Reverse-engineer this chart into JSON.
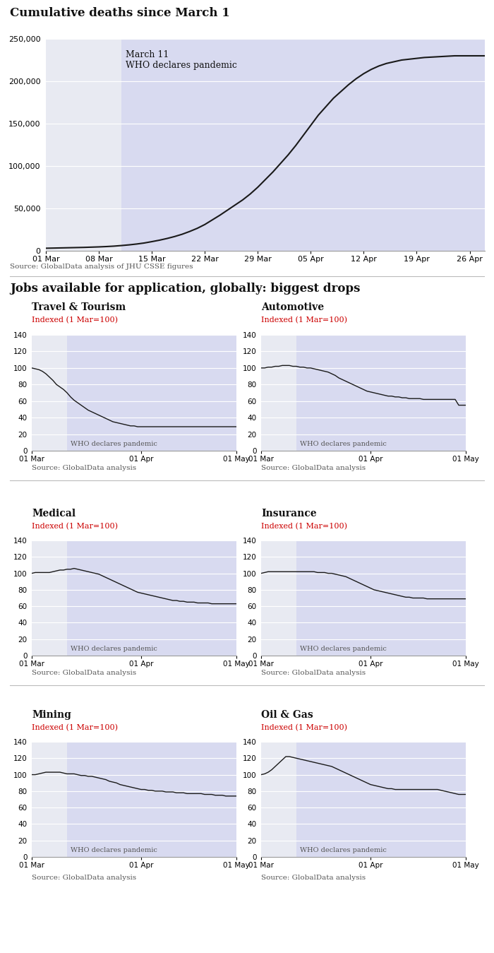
{
  "title_top": "Cumulative deaths since March 1",
  "source_top": "Source: GlobalData analysis of JHU CSSE figures",
  "title_jobs": "Jobs available for application, globally: biggest drops",
  "source_jobs": "Source: GlobalData analysis",
  "bg_color": "#ffffff",
  "plot_bg": "#e8eaf2",
  "pandemic_bg": "#d8daf0",
  "line_color": "#1a1a1a",
  "red_color": "#cc0000",
  "pandemic_label": "WHO declares pandemic",
  "march11_label": "March 11\nWHO declares pandemic",
  "indexed_label": "Indexed (1 Mar=100)",
  "deaths_x": [
    0,
    1,
    2,
    3,
    4,
    5,
    6,
    7,
    8,
    9,
    10,
    11,
    12,
    13,
    14,
    15,
    16,
    17,
    18,
    19,
    20,
    21,
    22,
    23,
    24,
    25,
    26,
    27,
    28,
    29,
    30,
    31,
    32,
    33,
    34,
    35,
    36,
    37,
    38,
    39,
    40,
    41,
    42,
    43,
    44,
    45,
    46,
    47,
    48,
    49,
    50,
    51,
    52,
    53,
    54,
    55,
    56,
    57,
    58
  ],
  "deaths_y": [
    3000,
    3200,
    3400,
    3600,
    3800,
    4000,
    4300,
    4600,
    5000,
    5500,
    6200,
    7000,
    8000,
    9200,
    10800,
    12500,
    14500,
    16800,
    19500,
    22800,
    26500,
    31000,
    36500,
    42000,
    48000,
    54000,
    60000,
    67000,
    75000,
    84000,
    93000,
    103000,
    113000,
    124000,
    136000,
    148000,
    160000,
    170000,
    180000,
    188000,
    196000,
    203000,
    209000,
    214000,
    218000,
    221000,
    223000,
    225000,
    226000,
    227000,
    228000,
    228500,
    229000,
    229500,
    230000,
    230000,
    230000,
    230000,
    230000
  ],
  "pandemic_day": 10,
  "xtick_days": [
    0,
    7,
    14,
    21,
    28,
    35,
    42,
    49,
    56
  ],
  "xtick_labels": [
    "01 Mar",
    "08 Mar",
    "15 Mar",
    "22 Mar",
    "29 Mar",
    "05 Apr",
    "12 Apr",
    "19 Apr",
    "26 Apr"
  ],
  "ylim_deaths": [
    0,
    250000
  ],
  "yticks_deaths": [
    0,
    50000,
    100000,
    150000,
    200000,
    250000
  ],
  "sectors": [
    "Travel & Tourism",
    "Automotive",
    "Medical",
    "Insurance",
    "Mining",
    "Oil & Gas"
  ],
  "sector_data": {
    "Travel & Tourism": [
      100,
      99,
      98,
      96,
      93,
      89,
      85,
      80,
      77,
      74,
      70,
      65,
      61,
      58,
      55,
      52,
      49,
      47,
      45,
      43,
      41,
      39,
      37,
      35,
      34,
      33,
      32,
      31,
      30,
      30,
      29,
      29,
      29,
      29,
      29,
      29,
      29,
      29,
      29,
      29,
      29,
      29,
      29,
      29,
      29,
      29,
      29,
      29,
      29,
      29,
      29,
      29,
      29,
      29,
      29,
      29,
      29,
      29,
      29
    ],
    "Automotive": [
      100,
      100,
      101,
      101,
      102,
      102,
      103,
      103,
      103,
      102,
      102,
      101,
      101,
      100,
      100,
      99,
      98,
      97,
      96,
      95,
      93,
      91,
      88,
      86,
      84,
      82,
      80,
      78,
      76,
      74,
      72,
      71,
      70,
      69,
      68,
      67,
      66,
      66,
      65,
      65,
      64,
      64,
      63,
      63,
      63,
      63,
      62,
      62,
      62,
      62,
      62,
      62,
      62,
      62,
      62,
      62,
      55,
      55,
      55
    ],
    "Medical": [
      100,
      101,
      101,
      101,
      101,
      101,
      102,
      103,
      104,
      104,
      105,
      105,
      106,
      105,
      104,
      103,
      102,
      101,
      100,
      99,
      97,
      95,
      93,
      91,
      89,
      87,
      85,
      83,
      81,
      79,
      77,
      76,
      75,
      74,
      73,
      72,
      71,
      70,
      69,
      68,
      67,
      67,
      66,
      66,
      65,
      65,
      65,
      64,
      64,
      64,
      64,
      63,
      63,
      63,
      63,
      63,
      63,
      63,
      63
    ],
    "Insurance": [
      100,
      101,
      102,
      102,
      102,
      102,
      102,
      102,
      102,
      102,
      102,
      102,
      102,
      102,
      102,
      102,
      101,
      101,
      101,
      100,
      100,
      99,
      98,
      97,
      96,
      94,
      92,
      90,
      88,
      86,
      84,
      82,
      80,
      79,
      78,
      77,
      76,
      75,
      74,
      73,
      72,
      71,
      71,
      70,
      70,
      70,
      70,
      69,
      69,
      69,
      69,
      69,
      69,
      69,
      69,
      69,
      69,
      69,
      69
    ],
    "Mining": [
      100,
      100,
      101,
      102,
      103,
      103,
      103,
      103,
      103,
      102,
      101,
      101,
      101,
      100,
      99,
      99,
      98,
      98,
      97,
      96,
      95,
      94,
      92,
      91,
      90,
      88,
      87,
      86,
      85,
      84,
      83,
      82,
      82,
      81,
      81,
      80,
      80,
      80,
      79,
      79,
      79,
      78,
      78,
      78,
      77,
      77,
      77,
      77,
      77,
      76,
      76,
      76,
      75,
      75,
      75,
      74,
      74,
      74,
      74
    ],
    "Oil & Gas": [
      100,
      101,
      103,
      106,
      110,
      114,
      118,
      122,
      122,
      121,
      120,
      119,
      118,
      117,
      116,
      115,
      114,
      113,
      112,
      111,
      110,
      108,
      106,
      104,
      102,
      100,
      98,
      96,
      94,
      92,
      90,
      88,
      87,
      86,
      85,
      84,
      83,
      83,
      82,
      82,
      82,
      82,
      82,
      82,
      82,
      82,
      82,
      82,
      82,
      82,
      82,
      81,
      80,
      79,
      78,
      77,
      76,
      76,
      76
    ]
  },
  "pandemic_day_small": 10,
  "xtick_labels_small": [
    "01 Mar",
    "01 Apr",
    "01 May"
  ],
  "ylim_small": [
    0,
    140
  ],
  "yticks_small": [
    0,
    20,
    40,
    60,
    80,
    100,
    120,
    140
  ]
}
